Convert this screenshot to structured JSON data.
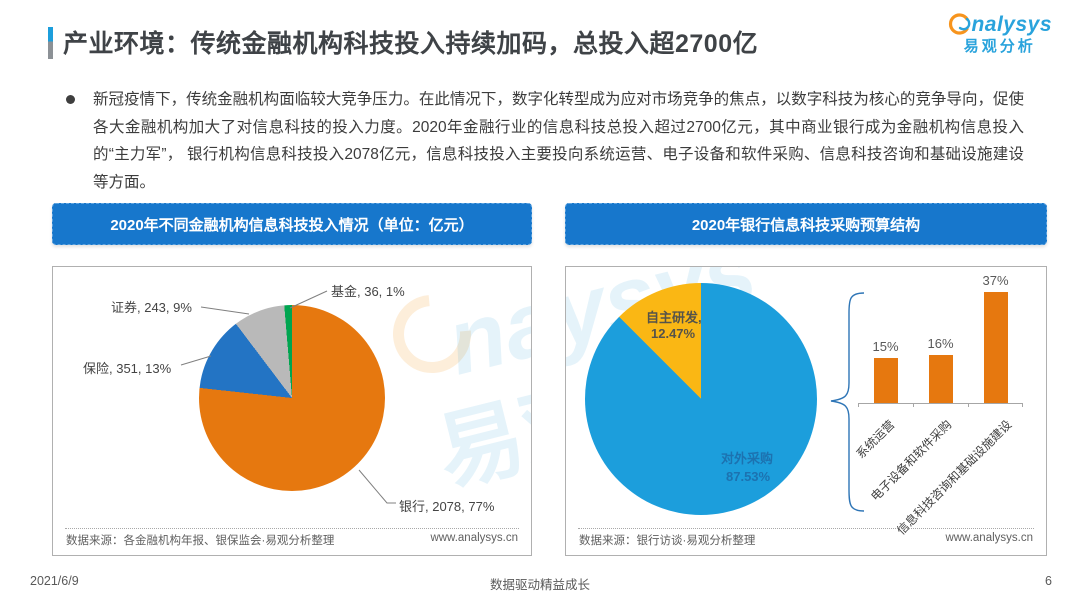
{
  "page": {
    "title": "产业环境：传统金融机构科技投入持续加码，总投入超2700亿",
    "logo": {
      "brand": "analysys",
      "brand_rest": "nalysys",
      "brand_cn": "易观分析"
    },
    "bullet_text": "新冠疫情下，传统金融机构面临较大竞争压力。在此情况下，数字化转型成为应对市场竞争的焦点，以数字科技为核心的竞争导向，促使各大金融机构加大了对信息科技的投入力度。2020年金融行业的信息科技总投入超过2700亿元，其中商业银行成为金融机构信息投入的“主力军”， 银行机构信息科技投入2078亿元，信息科技投入主要投向系统运营、电子设备和软件采购、信息科技咨询和基础设施建设等方面。",
    "footer": {
      "date": "2021/6/9",
      "slogan": "数据驱动精益成长",
      "page_number": "6"
    }
  },
  "left_panel": {
    "banner": "2020年不同金融机构信息科技投入情况（单位：亿元）",
    "source": "数据来源：各金融机构年报、银保监会·易观分析整理",
    "website": "www.analysys.cn"
  },
  "right_panel": {
    "banner": "2020年银行信息科技采购预算结构",
    "source": "数据来源：银行访谈·易观分析整理",
    "website": "www.analysys.cn"
  },
  "colors": {
    "banner_blue": "#1777cc",
    "pie_orange": "#e6780f",
    "pie_blue": "#2374c4",
    "pie_gray": "#b9b9b9",
    "pie_green": "#00a550",
    "pie_light_blue": "#1c9edc",
    "pie_yellow": "#fab714",
    "bar_orange": "#e6780f",
    "brace_blue": "#2e75b6",
    "logo_blue": "#29a3dc",
    "logo_orange": "#f7941d"
  },
  "chart_data": [
    {
      "type": "pie",
      "title": "2020年不同金融机构信息科技投入情况（单位：亿元）",
      "unit": "亿元",
      "direction": "clockwise",
      "start_angle_deg": 0,
      "slices": [
        {
          "label": "银行",
          "value": 2078,
          "percent": "77%",
          "color": "#e6780f",
          "display": "银行, 2078, 77%"
        },
        {
          "label": "保险",
          "value": 351,
          "percent": "13%",
          "color": "#2374c4",
          "display": "保险, 351, 13%"
        },
        {
          "label": "证券",
          "value": 243,
          "percent": "9%",
          "color": "#b9b9b9",
          "display": "证券, 243, 9%"
        },
        {
          "label": "基金",
          "value": 36,
          "percent": "1%",
          "color": "#00a550",
          "display": "基金, 36, 1%"
        }
      ]
    },
    {
      "type": "pie",
      "title": "2020年银行信息科技采购预算结构",
      "direction": "clockwise",
      "start_angle_deg": 0,
      "slices": [
        {
          "label": "对外采购",
          "value": 87.53,
          "percent": "87.53%",
          "color": "#1c9edc",
          "display_line1": "对外采购",
          "display_line2": "87.53%"
        },
        {
          "label": "自主研发",
          "value": 12.47,
          "percent": "12.47%",
          "color": "#fab714",
          "display_line1": "自主研发,",
          "display_line2": "12.47%"
        }
      ]
    },
    {
      "type": "bar",
      "title": "对外采购结构（占比）",
      "categories": [
        "系统运营",
        "电子设备和软件采购",
        "信息科技咨询和基础设施建设"
      ],
      "values": [
        15,
        16,
        37
      ],
      "labels": [
        "15%",
        "16%",
        "37%"
      ],
      "bar_color": "#e6780f",
      "ylim": [
        0,
        40
      ],
      "grid": false,
      "legend": false
    }
  ]
}
